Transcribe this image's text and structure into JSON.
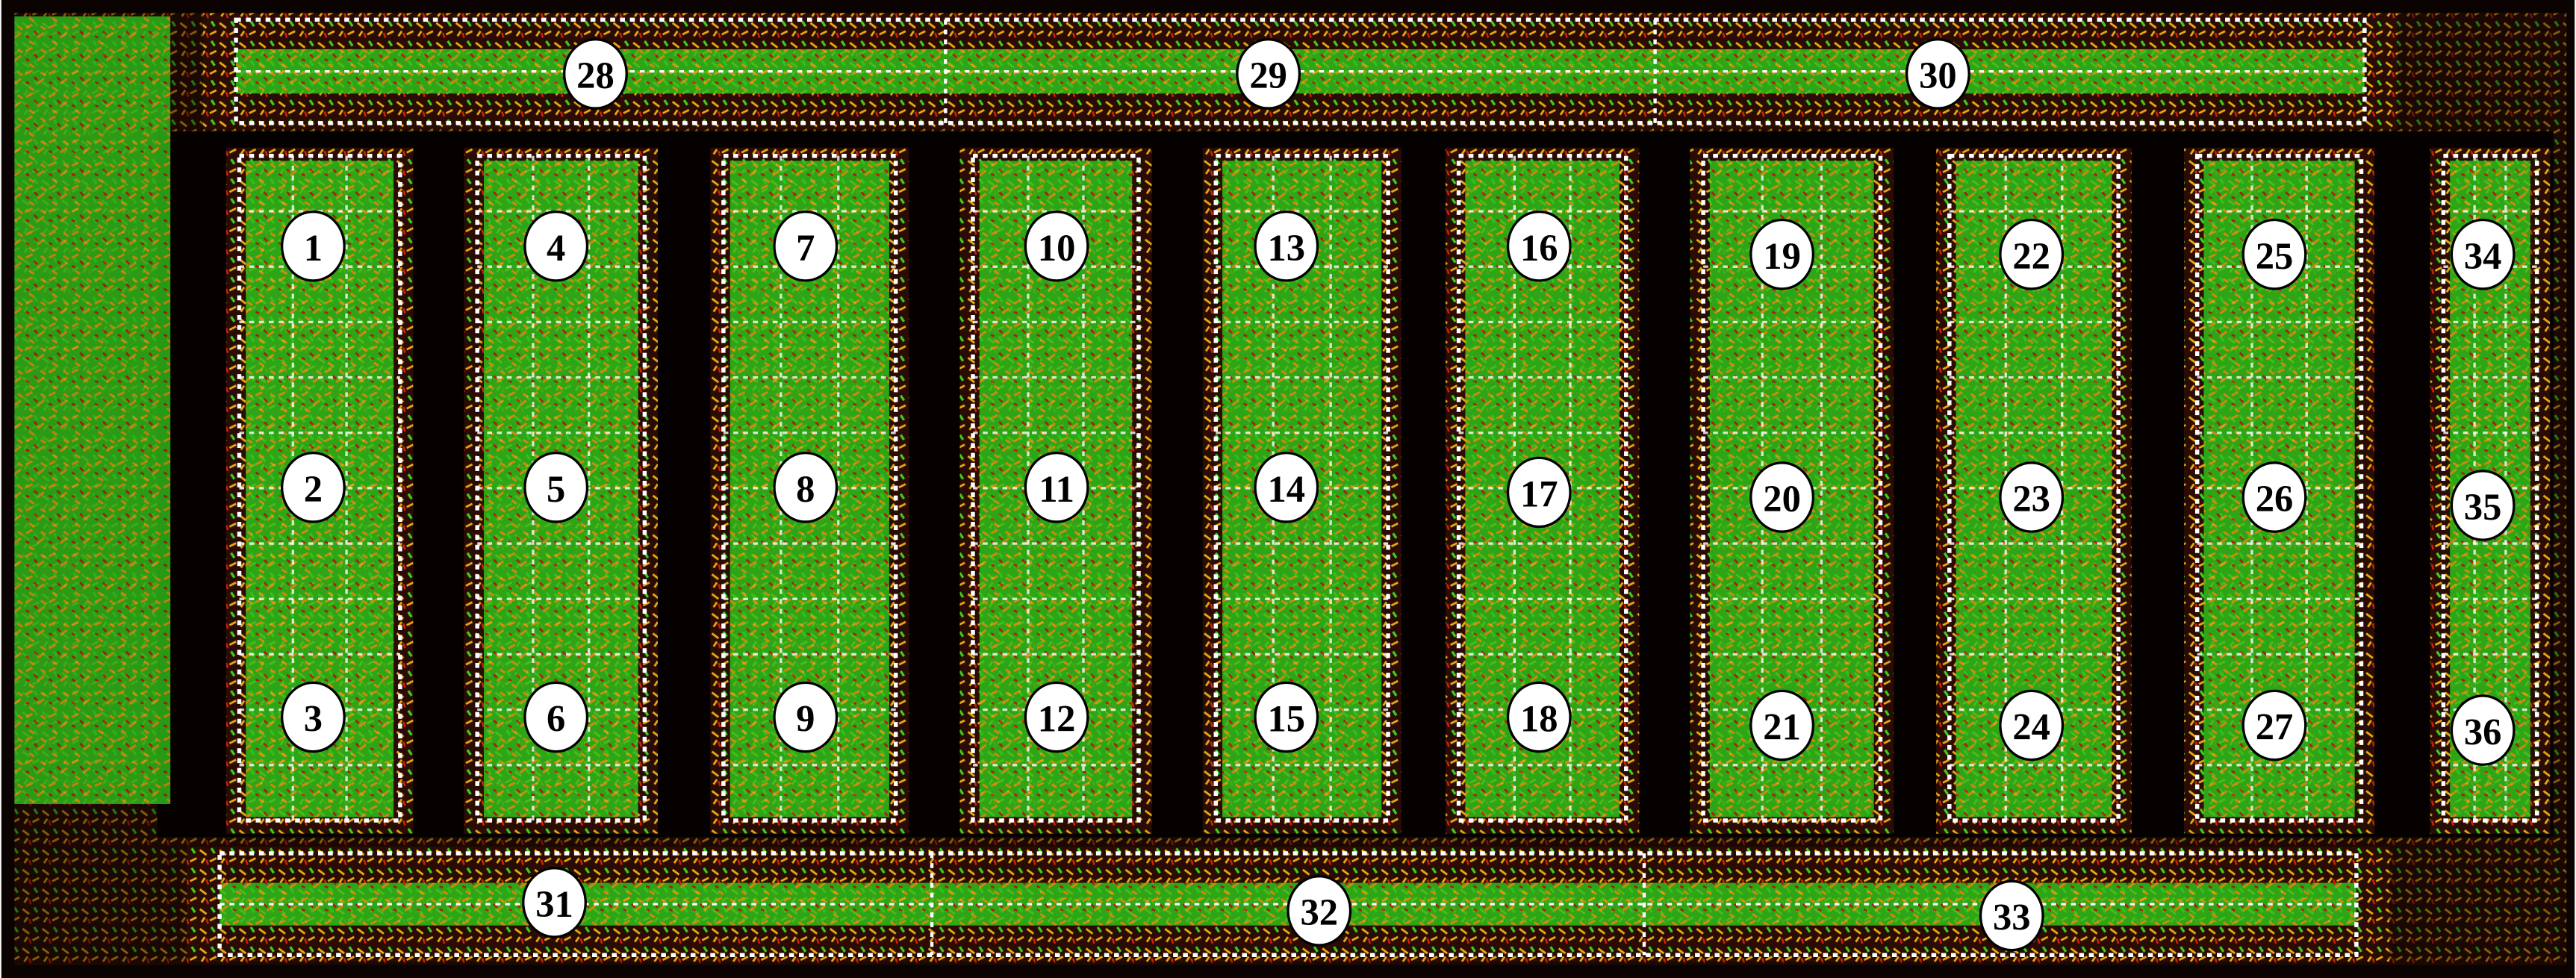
{
  "plot_labels": [
    "1",
    "2",
    "3",
    "4",
    "5",
    "6",
    "7",
    "8",
    "9",
    "10",
    "11",
    "12",
    "13",
    "14",
    "15",
    "16",
    "17",
    "18",
    "19",
    "20",
    "21",
    "22",
    "23",
    "24",
    "25",
    "26",
    "27",
    "28",
    "29",
    "30",
    "31",
    "32",
    "33",
    "34",
    "35",
    "36"
  ]
}
